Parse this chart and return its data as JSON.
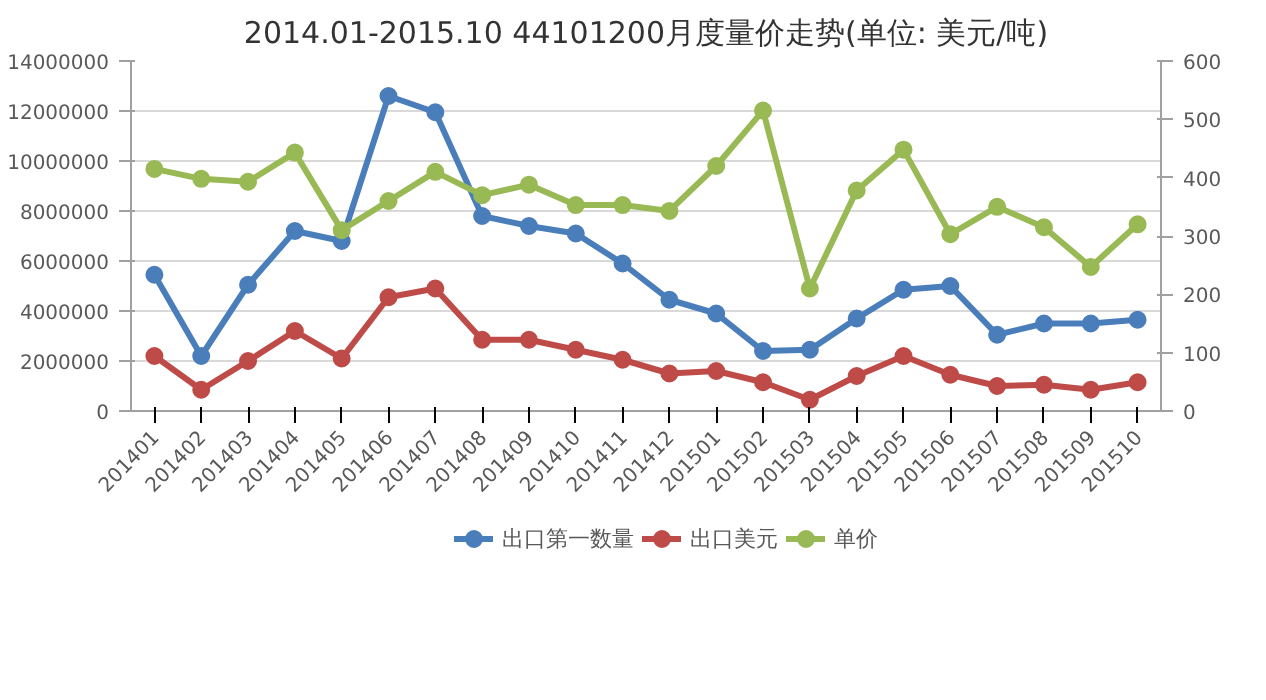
{
  "chart_data": {
    "type": "line",
    "title": "2014.01-2015.10 44101200月度量价走势(单位: 美元/吨)",
    "categories": [
      "201401",
      "201402",
      "201403",
      "201404",
      "201405",
      "201406",
      "201407",
      "201408",
      "201409",
      "201410",
      "201411",
      "201412",
      "201501",
      "201502",
      "201503",
      "201504",
      "201505",
      "201506",
      "201507",
      "201508",
      "201509",
      "201510"
    ],
    "series": [
      {
        "name": "出口第一数量",
        "color": "#4a7ebb",
        "values": [
          5450000,
          2200000,
          5050000,
          7200000,
          6800000,
          12600000,
          11950000,
          7800000,
          7400000,
          7100000,
          5900000,
          4450000,
          3900000,
          2400000,
          2450000,
          3700000,
          4850000,
          5000000,
          3050000,
          3500000,
          3500000,
          3650000
        ]
      },
      {
        "name": "出口美元",
        "color": "#be4b48",
        "values": [
          2200000,
          850000,
          2000000,
          3200000,
          2100000,
          4550000,
          4900000,
          2850000,
          2850000,
          2450000,
          2050000,
          1500000,
          1600000,
          1150000,
          450000,
          1400000,
          2200000,
          1450000,
          1000000,
          1050000,
          850000,
          1150000
        ]
      },
      {
        "name": "单价",
        "color": "#98b954",
        "axis": "y2",
        "values": [
          415,
          398,
          393,
          443,
          310,
          360,
          410,
          370,
          388,
          353,
          353,
          343,
          420,
          515,
          210,
          378,
          448,
          303,
          350,
          315,
          247,
          320
        ]
      }
    ],
    "ylim": [
      0,
      14000000
    ],
    "yticks": [
      0,
      2000000,
      4000000,
      6000000,
      8000000,
      10000000,
      12000000,
      14000000
    ],
    "y2lim": [
      0,
      600
    ],
    "y2ticks": [
      0,
      100,
      200,
      300,
      400,
      500,
      600
    ],
    "grid": "y",
    "legend": "bottom",
    "marker": "circle",
    "line_style": "solid"
  }
}
